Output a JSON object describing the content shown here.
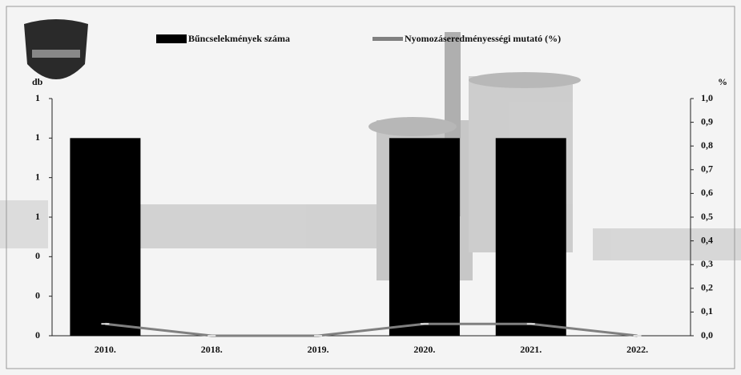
{
  "chart_data": {
    "type": "bar",
    "y_label": "db",
    "y2_label": "%",
    "categories": [
      "2010.",
      "2018.",
      "2019.",
      "2020.",
      "2021.",
      "2022."
    ],
    "series": [
      {
        "name": "Bűncselekmények száma",
        "color": "#000000",
        "values": [
          1,
          0,
          0,
          1,
          1,
          0
        ]
      },
      {
        "name": "Nyomozáseredményességi mutató (%)",
        "color": "#808080",
        "axis": "y2",
        "type": "line",
        "values": [
          0.05,
          0,
          0,
          0.05,
          0.05,
          0
        ]
      }
    ],
    "ylim": [
      0,
      1.2
    ],
    "yticks": [
      {
        "value": 0,
        "label": "0"
      },
      {
        "value": 0.2,
        "label": "0"
      },
      {
        "value": 0.4,
        "label": "0"
      },
      {
        "value": 0.6,
        "label": "1"
      },
      {
        "value": 0.8,
        "label": "1"
      },
      {
        "value": 1.0,
        "label": "1"
      },
      {
        "value": 1.2,
        "label": "1"
      }
    ],
    "y2lim": [
      0,
      1
    ],
    "y2ticks": [
      {
        "value": 0,
        "label": "0,0"
      },
      {
        "value": 0.1,
        "label": "0,1"
      },
      {
        "value": 0.2,
        "label": "0,2"
      },
      {
        "value": 0.3,
        "label": "0,3"
      },
      {
        "value": 0.4,
        "label": "0,4"
      },
      {
        "value": 0.5,
        "label": "0,5"
      },
      {
        "value": 0.6,
        "label": "0,6"
      },
      {
        "value": 0.7,
        "label": "0,7"
      },
      {
        "value": 0.8,
        "label": "0,8"
      },
      {
        "value": 0.9,
        "label": "0,9"
      },
      {
        "value": 1.0,
        "label": "1,0"
      }
    ],
    "legend": "top"
  }
}
